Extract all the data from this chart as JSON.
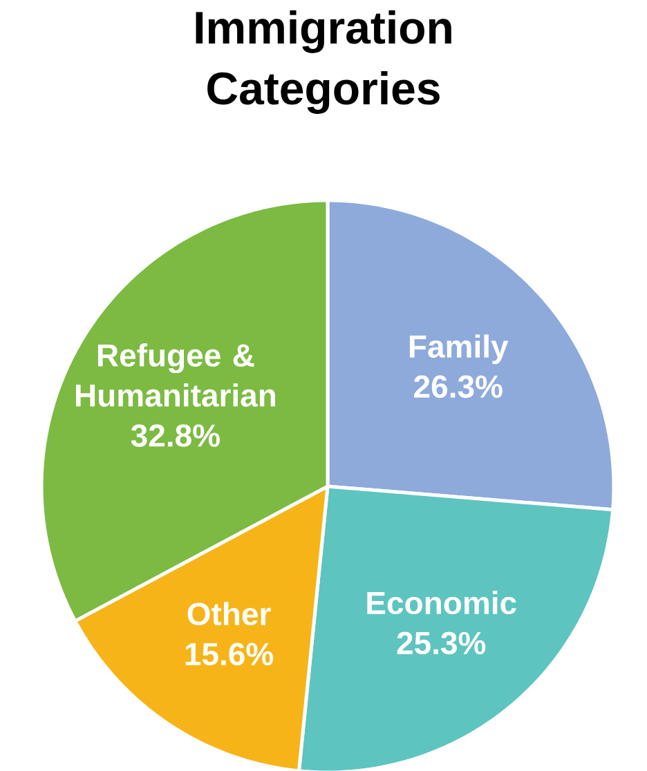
{
  "chart_data": {
    "type": "pie",
    "title": "Immigration Categories",
    "categories": [
      "Family",
      "Economic",
      "Other",
      "Refugee & Humanitarian"
    ],
    "values": [
      26.3,
      25.3,
      15.6,
      32.8
    ],
    "value_labels": [
      "26.3%",
      "25.3%",
      "15.6%",
      "32.8%"
    ],
    "colors": [
      "#8eaadb",
      "#5ec4bf",
      "#f7b419",
      "#7cba42"
    ]
  }
}
